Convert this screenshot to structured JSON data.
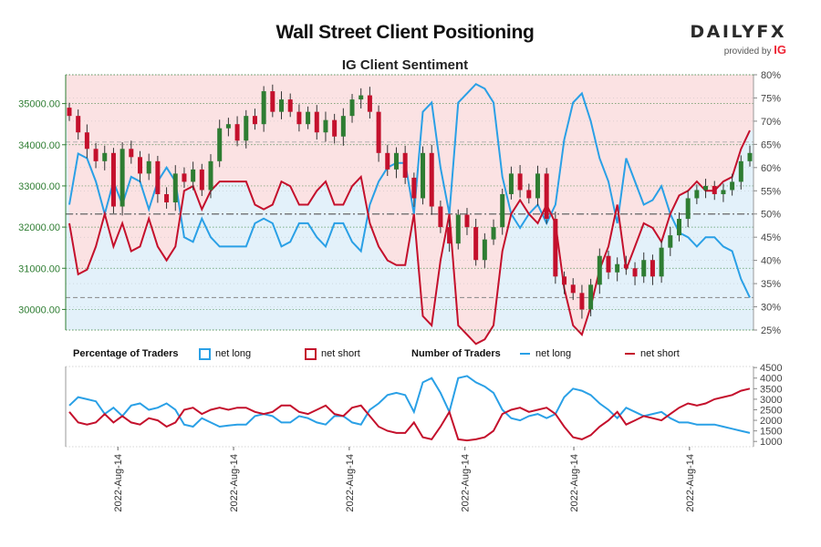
{
  "header": {
    "title": "Wall Street Client Positioning",
    "subtitle": "IG Client Sentiment"
  },
  "logo": {
    "word_a": "DAILY",
    "word_b": "FX",
    "provided_by": "provided by",
    "ig": "IG"
  },
  "legend": {
    "pct_header": "Percentage of Traders",
    "pct_long": "net long",
    "pct_short": "net short",
    "num_header": "Number of Traders",
    "num_long": "net long",
    "num_short": "net short"
  },
  "colors": {
    "long": "#2aa0e6",
    "short": "#c4102c",
    "long_fill": "#e3f1fa",
    "short_fill": "#fbe2e3",
    "candle_up": "#2e7d32",
    "candle_down": "#c4102c",
    "price_axis": "#2e7d32"
  },
  "chart_data": [
    {
      "type": "candlestick",
      "title": "IG Client Sentiment",
      "price_axis": {
        "ticks": [
          "30000.00",
          "31000.00",
          "32000.00",
          "33000.00",
          "34000.00",
          "35000.00"
        ],
        "range": [
          29500,
          35700
        ]
      },
      "sentiment_axis": {
        "ticks": [
          "25%",
          "30%",
          "35%",
          "40%",
          "45%",
          "50%",
          "55%",
          "60%",
          "65%",
          "70%",
          "75%",
          "80%"
        ],
        "range": [
          25,
          80
        ]
      },
      "reference_lines": [
        50
      ],
      "price_open": 34900,
      "price_closes": [
        34700,
        34300,
        33900,
        33600,
        33800,
        32500,
        33900,
        33700,
        33300,
        33600,
        32800,
        32600,
        33300,
        33100,
        33400,
        32900,
        33600,
        34400,
        34500,
        34100,
        34700,
        34500,
        35300,
        34800,
        35100,
        34800,
        34500,
        34800,
        34300,
        34600,
        34200,
        34700,
        35100,
        35200,
        34800,
        33800,
        33400,
        33800,
        33200,
        32700,
        33800,
        32500,
        32000,
        31600,
        32300,
        32000,
        31200,
        31700,
        32000,
        32800,
        33300,
        32900,
        32700,
        33300,
        32200,
        30800,
        30600,
        30400,
        30000,
        30600,
        31300,
        30900,
        31100,
        31000,
        30800,
        31200,
        30800,
        31500,
        31800,
        32200,
        32700,
        32900,
        33000,
        32800,
        32900,
        33100,
        33600,
        33800
      ],
      "pct_long": [
        52,
        63,
        62,
        57,
        50,
        57,
        52,
        58,
        57,
        51,
        57,
        60,
        57,
        45,
        44,
        49,
        45,
        43,
        43,
        43,
        43,
        48,
        49,
        48,
        43,
        44,
        48,
        48,
        45,
        43,
        48,
        48,
        44,
        42,
        52,
        57,
        60,
        61,
        61,
        50,
        72,
        74,
        60,
        50,
        74,
        76,
        78,
        77,
        74,
        58,
        50,
        47,
        50,
        52,
        48,
        52,
        66,
        74,
        76,
        70,
        62,
        57,
        48,
        62,
        57,
        52,
        53,
        56,
        50,
        46,
        45,
        43,
        45,
        45,
        43,
        42,
        36,
        32
      ],
      "pct_short": [
        48,
        37,
        38,
        43,
        50,
        43,
        48,
        42,
        43,
        49,
        43,
        40,
        43,
        55,
        56,
        51,
        55,
        57,
        57,
        57,
        57,
        52,
        51,
        52,
        57,
        56,
        52,
        52,
        55,
        57,
        52,
        52,
        56,
        58,
        48,
        43,
        40,
        39,
        39,
        50,
        28,
        26,
        40,
        50,
        26,
        24,
        22,
        23,
        26,
        42,
        50,
        53,
        50,
        48,
        52,
        48,
        34,
        26,
        24,
        30,
        38,
        43,
        52,
        38,
        43,
        48,
        47,
        44,
        50,
        54,
        55,
        57,
        55,
        55,
        57,
        58,
        64,
        68
      ]
    },
    {
      "type": "line",
      "title": "Number of Traders",
      "y_axis": {
        "ticks": [
          "1000",
          "1500",
          "2000",
          "2500",
          "3000",
          "3500",
          "4000",
          "4500"
        ],
        "range": [
          750,
          4550
        ]
      },
      "x_tick_labels": [
        "2022-Aug-14",
        "2022-Aug-14",
        "2022-Aug-14",
        "2022-Aug-14",
        "2022-Aug-14",
        "2022-Aug-14"
      ],
      "series": [
        {
          "name": "net long",
          "values": [
            2700,
            3100,
            3000,
            2900,
            2300,
            2600,
            2200,
            2700,
            2800,
            2500,
            2600,
            2800,
            2500,
            1800,
            1700,
            2100,
            1900,
            1700,
            1750,
            1800,
            1800,
            2200,
            2300,
            2200,
            1900,
            1900,
            2200,
            2100,
            1900,
            1800,
            2200,
            2200,
            1900,
            1800,
            2500,
            2800,
            3200,
            3300,
            3200,
            2400,
            3800,
            4000,
            3300,
            2400,
            4000,
            4100,
            3800,
            3600,
            3300,
            2500,
            2100,
            2000,
            2200,
            2300,
            2100,
            2300,
            3100,
            3500,
            3400,
            3200,
            2800,
            2500,
            2100,
            2600,
            2400,
            2200,
            2300,
            2400,
            2100,
            1900,
            1900,
            1800,
            1800,
            1800,
            1700,
            1600,
            1500,
            1400
          ]
        },
        {
          "name": "net short",
          "values": [
            2400,
            1900,
            1800,
            1900,
            2300,
            1900,
            2200,
            1900,
            1800,
            2100,
            2000,
            1700,
            1900,
            2500,
            2600,
            2300,
            2500,
            2600,
            2500,
            2600,
            2600,
            2400,
            2300,
            2400,
            2700,
            2700,
            2400,
            2300,
            2500,
            2700,
            2300,
            2200,
            2600,
            2700,
            2200,
            1700,
            1500,
            1400,
            1400,
            1900,
            1200,
            1100,
            1700,
            2400,
            1100,
            1050,
            1100,
            1200,
            1500,
            2300,
            2500,
            2600,
            2400,
            2500,
            2600,
            2300,
            1700,
            1200,
            1100,
            1300,
            1700,
            2000,
            2400,
            1800,
            2000,
            2200,
            2100,
            2000,
            2300,
            2600,
            2800,
            2700,
            2800,
            3000,
            3100,
            3200,
            3400,
            3500
          ]
        }
      ]
    }
  ]
}
